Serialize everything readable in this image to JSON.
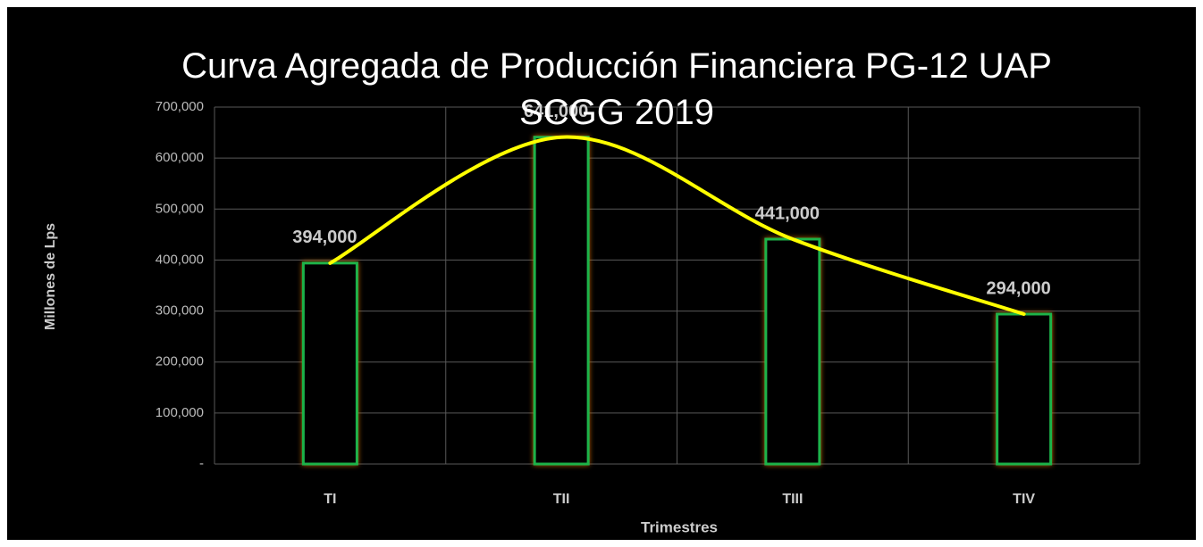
{
  "chart_data": {
    "type": "bar",
    "title": "Curva Agregada de Producción Financiera PG-12  UAP SCGG 2019",
    "x_label": "Trimestres",
    "y_label": "Millones de Lps",
    "categories": [
      "TI",
      "TII",
      "TIII",
      "TIV"
    ],
    "values": [
      394000,
      641000,
      441000,
      294000
    ],
    "value_labels": [
      "394,000",
      "641,000",
      "441,000",
      "294,000"
    ],
    "color": "#1db34a",
    "line_color": "#ffff00",
    "ylim": [
      0,
      700000
    ],
    "yticks": [
      {
        "value": 0,
        "label": "-"
      },
      {
        "value": 100000,
        "label": "100,000"
      },
      {
        "value": 200000,
        "label": "200,000"
      },
      {
        "value": 300000,
        "label": "300,000"
      },
      {
        "value": 400000,
        "label": "400,000"
      },
      {
        "value": 500000,
        "label": "500,000"
      },
      {
        "value": 600000,
        "label": "600,000"
      },
      {
        "value": 700000,
        "label": "700,000"
      }
    ],
    "grid": true
  }
}
